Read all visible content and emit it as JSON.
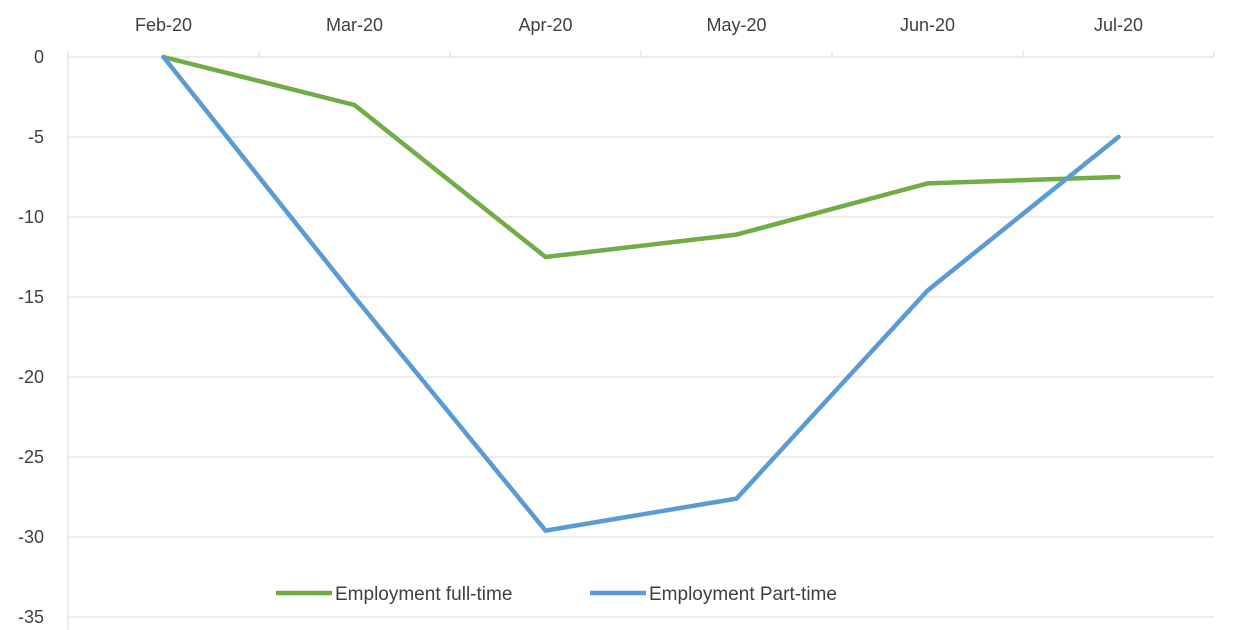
{
  "chart_data": {
    "type": "line",
    "categories": [
      "Feb-20",
      "Mar-20",
      "Apr-20",
      "May-20",
      "Jun-20",
      "Jul-20"
    ],
    "series": [
      {
        "name": "Employment full-time",
        "color": "#70AD47",
        "values": [
          0,
          -3,
          -12.5,
          -11.1,
          -7.9,
          -7.5
        ]
      },
      {
        "name": "Employment Part-time",
        "color": "#5B9BD5",
        "values": [
          0,
          -15,
          -29.6,
          -27.6,
          -14.6,
          -5
        ]
      }
    ],
    "ylim": [
      -35,
      0
    ],
    "yticks": [
      0,
      -5,
      -10,
      -15,
      -20,
      -25,
      -30,
      -35
    ],
    "ytick_labels": [
      "0",
      "-5",
      "-10",
      "-15",
      "-20",
      "-25",
      "-30",
      "-35"
    ],
    "x_axis_position": "top",
    "grid": true,
    "legend_position": "bottom-inside",
    "title": "",
    "xlabel": "",
    "ylabel": ""
  }
}
